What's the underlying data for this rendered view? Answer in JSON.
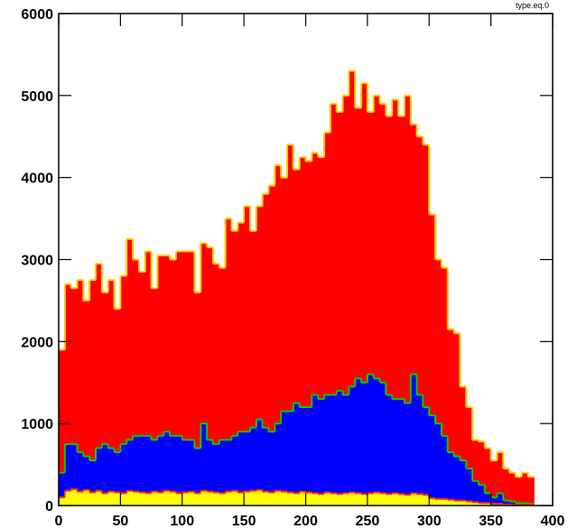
{
  "chart_data": {
    "type": "histogram",
    "annotation": "type.eq.0",
    "bins": [
      0,
      5,
      10,
      15,
      20,
      25,
      30,
      35,
      40,
      45,
      50,
      55,
      60,
      65,
      70,
      75,
      80,
      85,
      90,
      95,
      100,
      105,
      110,
      115,
      120,
      125,
      130,
      135,
      140,
      145,
      150,
      155,
      160,
      165,
      170,
      175,
      180,
      185,
      190,
      195,
      200,
      205,
      210,
      215,
      220,
      225,
      230,
      235,
      240,
      245,
      250,
      255,
      260,
      265,
      270,
      275,
      280,
      285,
      290,
      295,
      300,
      305,
      310,
      315,
      320,
      325,
      330,
      335,
      340,
      345,
      350,
      355,
      360,
      365,
      370,
      375,
      380,
      385
    ],
    "series": [
      {
        "color": "#ff0000",
        "edge_color": "#ffcc00",
        "values": [
          1900,
          2700,
          2650,
          2750,
          2500,
          2750,
          2950,
          2600,
          2750,
          2400,
          2800,
          3250,
          3000,
          2850,
          3100,
          2650,
          3050,
          3050,
          3000,
          3100,
          3100,
          3100,
          2600,
          3200,
          3150,
          2950,
          2900,
          3500,
          3350,
          3450,
          3650,
          3350,
          3650,
          3800,
          3900,
          4150,
          4000,
          4400,
          4100,
          4250,
          4200,
          4300,
          4250,
          4550,
          4900,
          4800,
          5000,
          5300,
          4850,
          5150,
          4800,
          5000,
          4900,
          4750,
          4950,
          4750,
          5000,
          4650,
          4500,
          4400,
          3550,
          3000,
          2900,
          2150,
          2100,
          1450,
          1200,
          800,
          780,
          700,
          550,
          650,
          450,
          400,
          350,
          400,
          350
        ]
      },
      {
        "color": "#0000ff",
        "edge_color": "#00cc00",
        "values": [
          400,
          750,
          750,
          650,
          600,
          550,
          700,
          750,
          700,
          650,
          750,
          800,
          850,
          850,
          850,
          800,
          850,
          900,
          850,
          850,
          800,
          800,
          700,
          1000,
          800,
          750,
          800,
          800,
          850,
          900,
          900,
          950,
          1050,
          950,
          900,
          1000,
          1150,
          1150,
          1250,
          1200,
          1200,
          1350,
          1300,
          1350,
          1350,
          1400,
          1350,
          1450,
          1550,
          1500,
          1600,
          1550,
          1500,
          1350,
          1300,
          1300,
          1250,
          1600,
          1350,
          1200,
          1100,
          1000,
          850,
          650,
          600,
          550,
          450,
          300,
          250,
          150,
          100,
          150,
          60,
          50,
          30,
          30,
          20
        ]
      },
      {
        "color": "#ffff00",
        "edge_color": "#ff3300",
        "values": [
          100,
          180,
          200,
          170,
          190,
          160,
          180,
          150,
          170,
          160,
          150,
          180,
          170,
          160,
          150,
          170,
          160,
          180,
          170,
          150,
          160,
          170,
          150,
          180,
          170,
          160,
          150,
          170,
          180,
          160,
          170,
          180,
          190,
          170,
          160,
          180,
          170,
          160,
          150,
          170,
          160,
          150,
          140,
          160,
          150,
          140,
          150,
          160,
          150,
          140,
          150,
          160,
          150,
          140,
          150,
          140,
          130,
          150,
          140,
          130,
          90,
          80,
          80,
          70,
          60,
          60,
          50,
          40,
          30,
          30,
          20,
          20,
          10,
          10,
          10,
          10,
          10
        ]
      }
    ],
    "xlim": [
      0,
      400
    ],
    "ylim": [
      0,
      6000
    ],
    "xticks": [
      0,
      50,
      100,
      150,
      200,
      250,
      300,
      350,
      400
    ],
    "yticks": [
      0,
      1000,
      2000,
      3000,
      4000,
      5000,
      6000
    ]
  }
}
